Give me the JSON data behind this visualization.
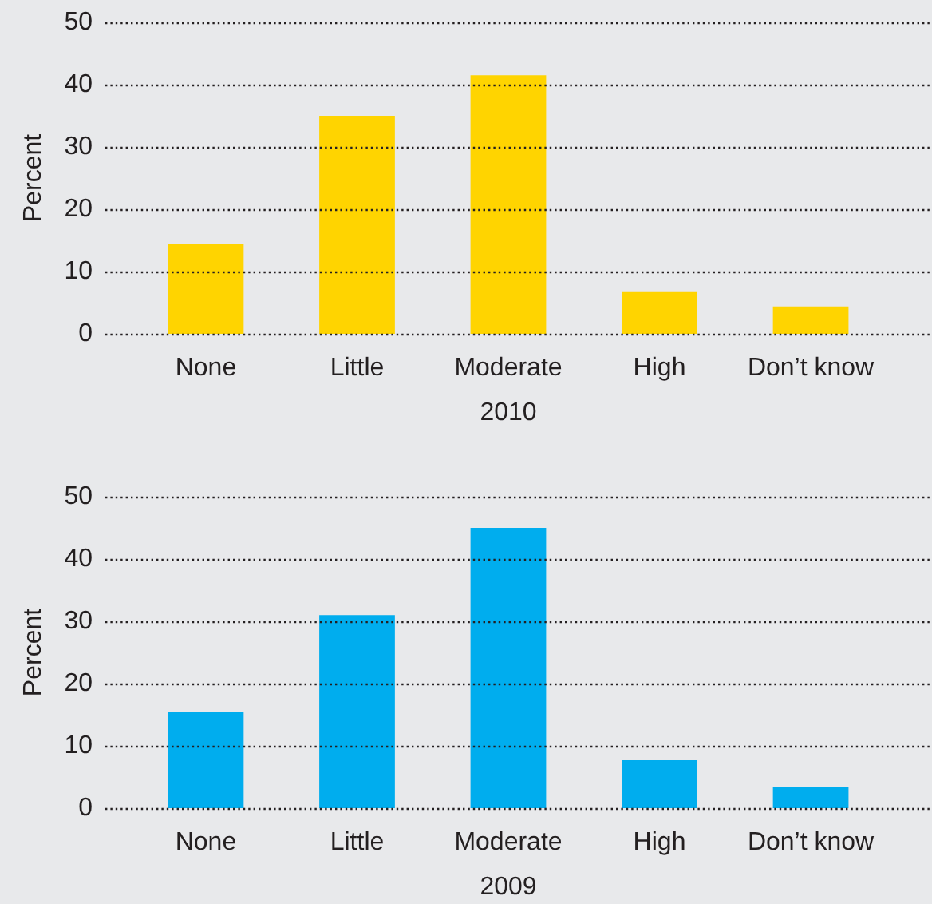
{
  "chart_data": [
    {
      "type": "bar",
      "xlabel": "2010",
      "ylabel": "Percent",
      "categories": [
        "None",
        "Little",
        "Moderate",
        "High",
        "Don’t know"
      ],
      "values": [
        14.5,
        35,
        41.5,
        6.7,
        4.4
      ],
      "color": "#ffd400",
      "ylim": [
        0,
        50
      ],
      "yticks": [
        0,
        10,
        20,
        30,
        40,
        50
      ],
      "grid": "y"
    },
    {
      "type": "bar",
      "xlabel": "2009",
      "ylabel": "Percent",
      "categories": [
        "None",
        "Little",
        "Moderate",
        "High",
        "Don’t know"
      ],
      "values": [
        15.5,
        31,
        45,
        7.7,
        3.4
      ],
      "color": "#00adee",
      "ylim": [
        0,
        50
      ],
      "yticks": [
        0,
        10,
        20,
        30,
        40,
        50
      ],
      "grid": "y"
    }
  ]
}
